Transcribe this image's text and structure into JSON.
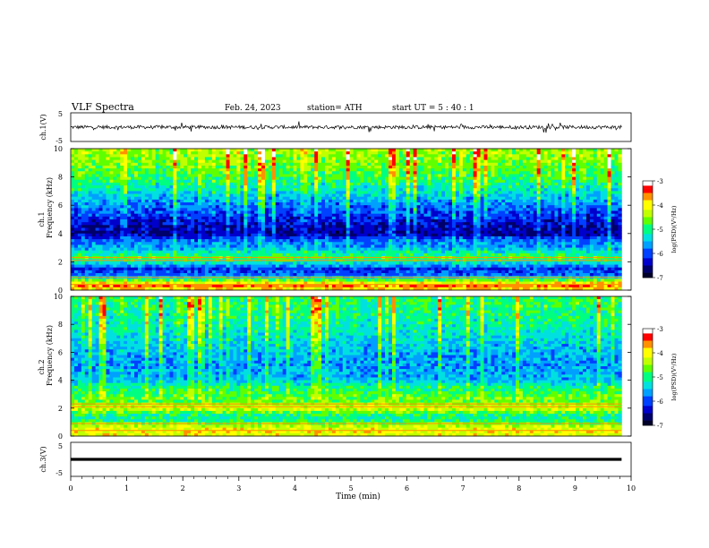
{
  "header": {
    "title": "VLF  Spectra",
    "date": "Feb. 24, 2023",
    "station": "station= ATH",
    "start_ut": "start  UT  =    5  : 40 : 1"
  },
  "colors": {
    "trace": "#000000",
    "colormap": [
      "#00002a",
      "#00006a",
      "#0000cc",
      "#0040ff",
      "#00a0ff",
      "#00e0e0",
      "#00ff80",
      "#60ff00",
      "#c0ff00",
      "#ffff00",
      "#ff9000",
      "#ff0000",
      "#ffffff"
    ]
  },
  "chart_data": [
    {
      "type": "line",
      "panel": "ch1-waveform",
      "ylabel": "ch.1(V)",
      "ylim": [
        -5,
        5
      ],
      "yticks": [
        "5",
        "-5"
      ],
      "x_range": [
        0,
        9.83
      ],
      "approx_level": 0,
      "approx_amplitude": 1.5
    },
    {
      "type": "heatmap",
      "panel": "ch1-spectrogram",
      "ylabel": "ch.1\nFrequency  (kHz)",
      "ylim": [
        0,
        10
      ],
      "yticks": [
        "0",
        "2",
        "4",
        "6",
        "8",
        "10"
      ],
      "x_range": [
        0,
        9.83
      ],
      "colorbar": {
        "label": "log(PSD)(V²/Hz)",
        "range": [
          -7,
          -3
        ],
        "ticks": [
          "-3",
          "-4",
          "-5",
          "-6",
          "-7"
        ]
      },
      "profile": [
        {
          "f": 0.0,
          "v": -4.0
        },
        {
          "f": 0.3,
          "v": -3.6
        },
        {
          "f": 0.6,
          "v": -4.3
        },
        {
          "f": 1.0,
          "v": -5.8
        },
        {
          "f": 1.5,
          "v": -6.1
        },
        {
          "f": 2.0,
          "v": -5.2
        },
        {
          "f": 2.3,
          "v": -4.8
        },
        {
          "f": 3.0,
          "v": -5.7
        },
        {
          "f": 3.5,
          "v": -5.9
        },
        {
          "f": 4.0,
          "v": -6.6
        },
        {
          "f": 4.5,
          "v": -6.5
        },
        {
          "f": 5.0,
          "v": -6.3
        },
        {
          "f": 6.0,
          "v": -5.9
        },
        {
          "f": 7.0,
          "v": -5.4
        },
        {
          "f": 8.0,
          "v": -5.0
        },
        {
          "f": 9.0,
          "v": -4.8
        },
        {
          "f": 10.0,
          "v": -4.6
        }
      ]
    },
    {
      "type": "heatmap",
      "panel": "ch2-spectrogram",
      "ylabel": "ch.2\nFrequency  (kHz)",
      "ylim": [
        0,
        10
      ],
      "yticks": [
        "0",
        "2",
        "4",
        "6",
        "8",
        "10"
      ],
      "x_range": [
        0,
        9.83
      ],
      "colorbar": {
        "label": "log(PSD)(V²/Hz)",
        "range": [
          -7,
          -3
        ],
        "ticks": [
          "-3",
          "-4",
          "-5",
          "-6",
          "-7"
        ]
      },
      "profile": [
        {
          "f": 0.0,
          "v": -4.2
        },
        {
          "f": 0.4,
          "v": -4.0
        },
        {
          "f": 0.8,
          "v": -4.4
        },
        {
          "f": 1.2,
          "v": -5.2
        },
        {
          "f": 1.6,
          "v": -4.9
        },
        {
          "f": 2.0,
          "v": -4.1
        },
        {
          "f": 2.4,
          "v": -4.6
        },
        {
          "f": 3.0,
          "v": -4.9
        },
        {
          "f": 3.5,
          "v": -5.1
        },
        {
          "f": 4.0,
          "v": -5.6
        },
        {
          "f": 5.0,
          "v": -5.8
        },
        {
          "f": 6.0,
          "v": -5.7
        },
        {
          "f": 7.0,
          "v": -5.5
        },
        {
          "f": 8.0,
          "v": -5.3
        },
        {
          "f": 9.0,
          "v": -5.2
        },
        {
          "f": 10.0,
          "v": -5.1
        }
      ]
    },
    {
      "type": "line",
      "panel": "ch3-waveform",
      "ylabel": "ch.3(V)",
      "ylim": [
        -5,
        5
      ],
      "yticks": [
        "5",
        "-5"
      ],
      "x_range": [
        0,
        9.83
      ],
      "approx_level": 0,
      "approx_amplitude": 0.2
    }
  ],
  "x_axis": {
    "label": "Time  (min)",
    "ticks": [
      "0",
      "1",
      "2",
      "3",
      "4",
      "5",
      "6",
      "7",
      "8",
      "9",
      "10"
    ],
    "xlim": [
      0,
      10
    ]
  }
}
